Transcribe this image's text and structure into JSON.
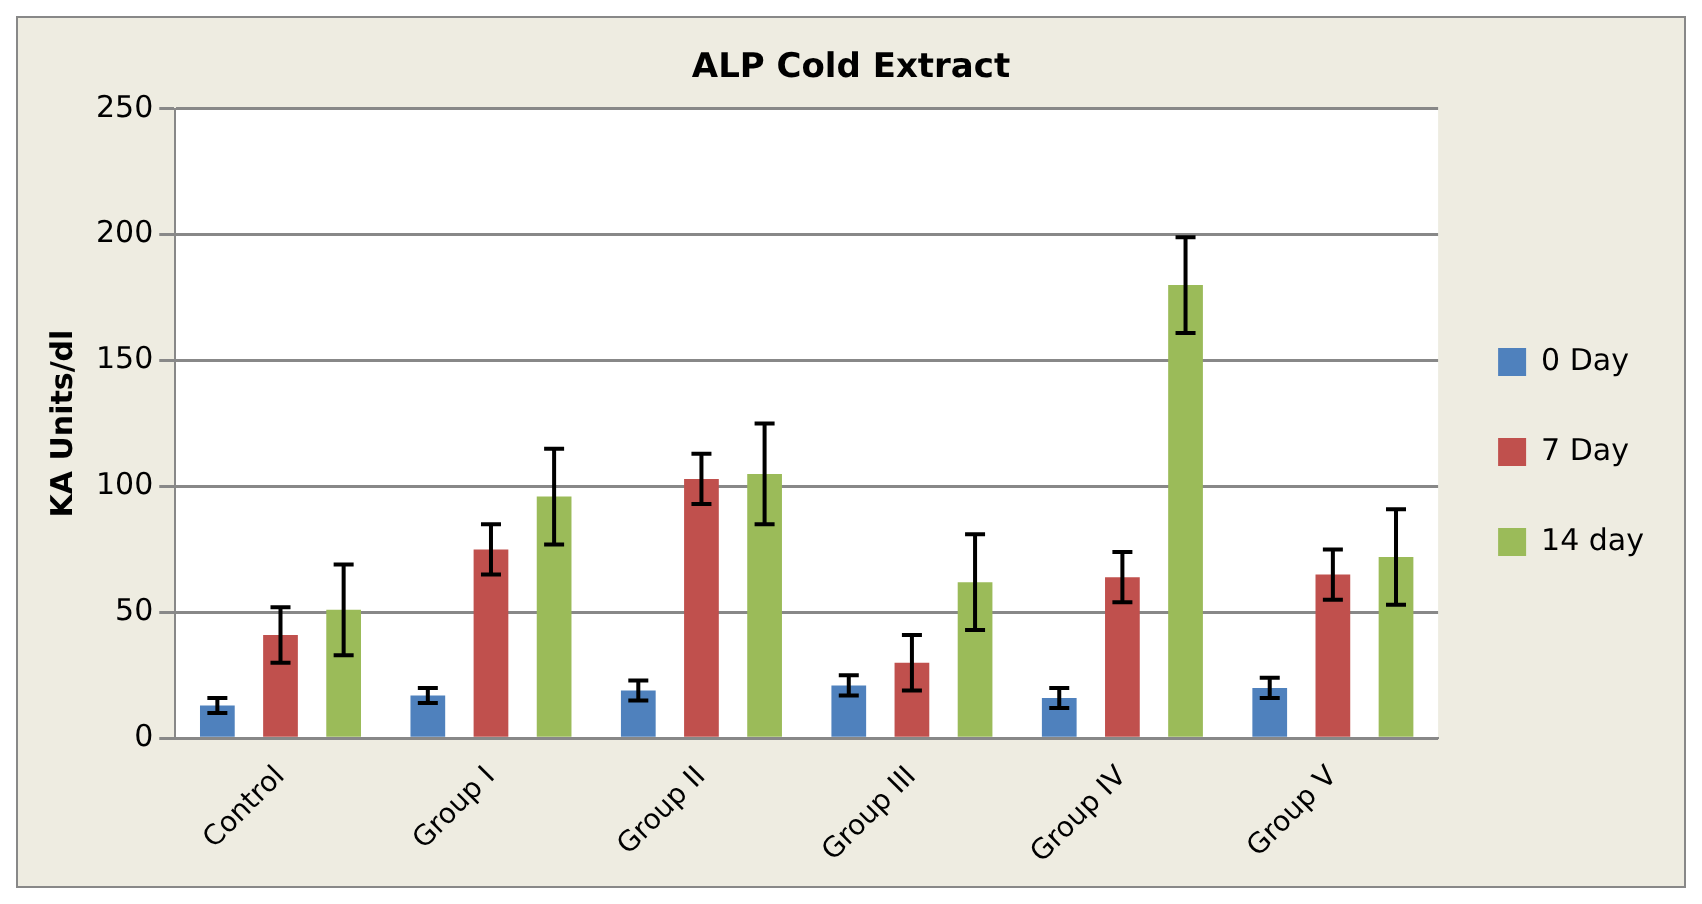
{
  "chart_data": {
    "type": "bar",
    "title": "ALP Cold Extract",
    "ylabel": "KA Units/dl",
    "categories": [
      "Control",
      "Group I",
      "Group II",
      "Group III",
      "Group IV",
      "Group V"
    ],
    "series": [
      {
        "name": "0 Day",
        "color": "#4f81bd",
        "values": [
          13,
          17,
          19,
          21,
          16,
          20
        ],
        "errors": [
          3,
          3,
          4,
          4,
          4,
          4
        ]
      },
      {
        "name": "7 Day",
        "color": "#c0504d",
        "values": [
          41,
          75,
          103,
          30,
          64,
          65
        ],
        "errors": [
          11,
          10,
          10,
          11,
          10,
          10
        ]
      },
      {
        "name": "14 day",
        "color": "#9bbb59",
        "values": [
          51,
          96,
          105,
          62,
          180,
          72
        ],
        "errors": [
          18,
          19,
          20,
          19,
          19,
          19
        ]
      }
    ],
    "ylim": [
      0,
      250
    ],
    "yticks": [
      0,
      50,
      100,
      150,
      200,
      250
    ],
    "grid": "y",
    "legend": "right"
  }
}
